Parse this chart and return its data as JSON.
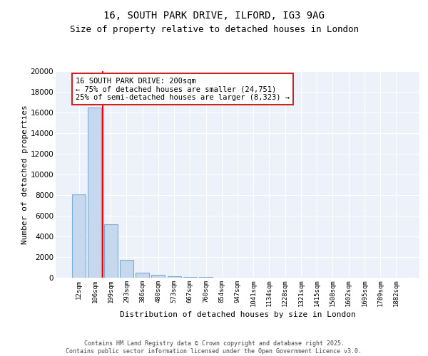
{
  "title_line1": "16, SOUTH PARK DRIVE, ILFORD, IG3 9AG",
  "title_line2": "Size of property relative to detached houses in London",
  "xlabel": "Distribution of detached houses by size in London",
  "ylabel": "Number of detached properties",
  "categories": [
    "12sqm",
    "106sqm",
    "199sqm",
    "293sqm",
    "386sqm",
    "480sqm",
    "573sqm",
    "667sqm",
    "760sqm",
    "854sqm",
    "947sqm",
    "1041sqm",
    "1134sqm",
    "1228sqm",
    "1321sqm",
    "1415sqm",
    "1508sqm",
    "1602sqm",
    "1695sqm",
    "1789sqm",
    "1882sqm"
  ],
  "values": [
    8100,
    16500,
    5200,
    1700,
    500,
    300,
    150,
    80,
    40,
    20,
    10,
    5,
    3,
    2,
    1,
    1,
    0,
    0,
    0,
    0,
    0
  ],
  "bar_color": "#c5d8ee",
  "bar_edge_color": "#7aadd4",
  "red_line_x": 1.5,
  "annotation_text": "16 SOUTH PARK DRIVE: 200sqm\n← 75% of detached houses are smaller (24,751)\n25% of semi-detached houses are larger (8,323) →",
  "ylim": [
    0,
    20000
  ],
  "yticks": [
    0,
    2000,
    4000,
    6000,
    8000,
    10000,
    12000,
    14000,
    16000,
    18000,
    20000
  ],
  "bg_color": "#edf2fa",
  "grid_color": "#ffffff",
  "footer_text": "Contains HM Land Registry data © Crown copyright and database right 2025.\nContains public sector information licensed under the Open Government Licence v3.0.",
  "title_fontsize": 10,
  "subtitle_fontsize": 9,
  "ann_fontsize": 7.5
}
